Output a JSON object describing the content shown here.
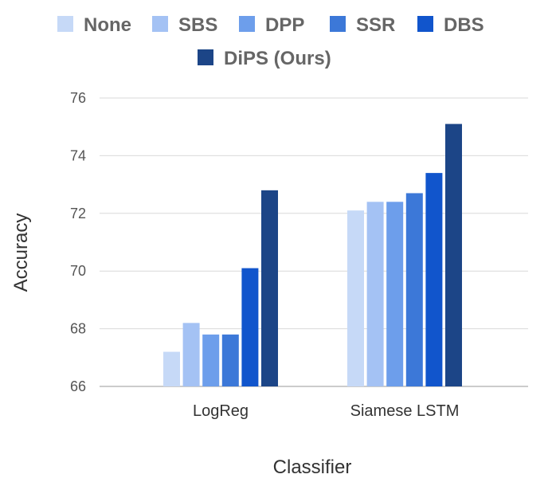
{
  "chart_data": {
    "type": "bar",
    "title": "",
    "xlabel": "Classifier",
    "ylabel": "Accuracy",
    "categories": [
      "LogReg",
      "Siamese LSTM"
    ],
    "ylim": [
      66,
      76
    ],
    "yticks": [
      66,
      68,
      70,
      72,
      74,
      76
    ],
    "grid": true,
    "legend_position": "top",
    "series": [
      {
        "name": "None",
        "color": "#c6d9f7",
        "values": [
          67.2,
          72.1
        ]
      },
      {
        "name": "SBS",
        "color": "#a4c2f4",
        "values": [
          68.2,
          72.4
        ]
      },
      {
        "name": "DPP",
        "color": "#6d9eeb",
        "values": [
          67.8,
          72.4
        ]
      },
      {
        "name": "SSR",
        "color": "#3c78d8",
        "values": [
          67.8,
          72.7
        ]
      },
      {
        "name": "DBS",
        "color": "#1155cc",
        "values": [
          70.1,
          73.4
        ]
      },
      {
        "name": "DiPS (Ours)",
        "color": "#1c4587",
        "values": [
          72.8,
          75.1
        ]
      }
    ]
  }
}
